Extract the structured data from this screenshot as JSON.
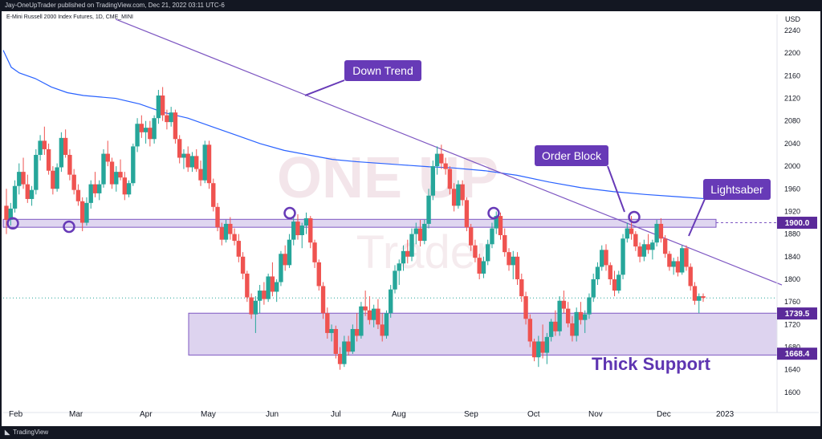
{
  "header": {
    "publish_text": "Jay-OneUpTrader published on TradingView.com, Dec 21, 2022 03:11 UTC-6"
  },
  "footer": {
    "logo_icon": "tradingview-logo-icon",
    "brand": "TradingView"
  },
  "chart_data": {
    "type": "candlestick",
    "title": "E-Mini Russell 2000 Index Futures, 1D, CME_MINI",
    "currency": "USD",
    "ylim": [
      1600,
      2260
    ],
    "yticks": [
      1600,
      1640,
      1680,
      1720,
      1760,
      1800,
      1840,
      1880,
      1920,
      1960,
      2000,
      2040,
      2080,
      2120,
      2160,
      2200,
      2240
    ],
    "x_months": [
      "Feb",
      "Mar",
      "Apr",
      "May",
      "Jun",
      "Jul",
      "Aug",
      "Sep",
      "Oct",
      "Nov",
      "Dec",
      "2023"
    ],
    "colors": {
      "up": "#26a69a",
      "down": "#ef5350",
      "ma": "#2962ff",
      "trend": "#7e57c2",
      "zone_fill": "#d1c4e9",
      "zone_stroke": "#7e57c2",
      "label_bg": "#673ab7",
      "price_tag": "#5b2a9a",
      "current_price_line": "#26a69a"
    },
    "price_tags": [
      1900.0,
      1739.5,
      1668.4
    ],
    "price_tag_labels": [
      "1900.0",
      "1739.5",
      "1668.4"
    ],
    "resistance_zone": [
      1892,
      1906
    ],
    "support_zone": [
      1666,
      1740
    ],
    "current_price_level": 1767,
    "annotations": [
      "Down Trend",
      "Order Block",
      "Lightsaber",
      "Thick Support"
    ],
    "watermark": [
      "ONE UP",
      "Trader"
    ],
    "moving_average": [
      {
        "t": 0,
        "v": 2205
      },
      {
        "t": 10,
        "v": 2175
      },
      {
        "t": 20,
        "v": 2165
      },
      {
        "t": 40,
        "v": 2155
      },
      {
        "t": 60,
        "v": 2140
      },
      {
        "t": 80,
        "v": 2130
      },
      {
        "t": 100,
        "v": 2125
      },
      {
        "t": 140,
        "v": 2120
      },
      {
        "t": 170,
        "v": 2110
      },
      {
        "t": 200,
        "v": 2095
      },
      {
        "t": 230,
        "v": 2085
      },
      {
        "t": 260,
        "v": 2070
      },
      {
        "t": 290,
        "v": 2055
      },
      {
        "t": 320,
        "v": 2040
      },
      {
        "t": 350,
        "v": 2028
      },
      {
        "t": 380,
        "v": 2020
      },
      {
        "t": 410,
        "v": 2012
      },
      {
        "t": 440,
        "v": 2008
      },
      {
        "t": 470,
        "v": 2005
      },
      {
        "t": 500,
        "v": 2002
      },
      {
        "t": 530,
        "v": 1999
      },
      {
        "t": 560,
        "v": 1997
      },
      {
        "t": 600,
        "v": 1992
      },
      {
        "t": 640,
        "v": 1984
      },
      {
        "t": 680,
        "v": 1972
      },
      {
        "t": 720,
        "v": 1962
      },
      {
        "t": 760,
        "v": 1955
      },
      {
        "t": 800,
        "v": 1950
      },
      {
        "t": 840,
        "v": 1946
      },
      {
        "t": 880,
        "v": 1942
      }
    ],
    "trendline": [
      {
        "t": 140,
        "v": 2260
      },
      {
        "t": 970,
        "v": 1790
      }
    ],
    "circle_points": [
      {
        "t": 12,
        "v": 1899
      },
      {
        "t": 82,
        "v": 1893
      },
      {
        "t": 357,
        "v": 1917
      },
      {
        "t": 611,
        "v": 1917
      },
      {
        "t": 786,
        "v": 1910
      }
    ],
    "candles": [
      {
        "o": 1930,
        "h": 1960,
        "l": 1880,
        "c": 1905
      },
      {
        "o": 1905,
        "h": 1935,
        "l": 1895,
        "c": 1925
      },
      {
        "o": 1925,
        "h": 1975,
        "l": 1918,
        "c": 1965
      },
      {
        "o": 1965,
        "h": 2005,
        "l": 1950,
        "c": 1990
      },
      {
        "o": 1990,
        "h": 2015,
        "l": 1960,
        "c": 1968
      },
      {
        "o": 1968,
        "h": 1985,
        "l": 1935,
        "c": 1942
      },
      {
        "o": 1942,
        "h": 1965,
        "l": 1930,
        "c": 1958
      },
      {
        "o": 1958,
        "h": 2030,
        "l": 1950,
        "c": 2020
      },
      {
        "o": 2020,
        "h": 2055,
        "l": 2010,
        "c": 2045
      },
      {
        "o": 2045,
        "h": 2070,
        "l": 2020,
        "c": 2030
      },
      {
        "o": 2030,
        "h": 2040,
        "l": 1985,
        "c": 1992
      },
      {
        "o": 1992,
        "h": 2000,
        "l": 1950,
        "c": 1960
      },
      {
        "o": 1960,
        "h": 2005,
        "l": 1955,
        "c": 1998
      },
      {
        "o": 1998,
        "h": 2060,
        "l": 1990,
        "c": 2050
      },
      {
        "o": 2050,
        "h": 2065,
        "l": 2015,
        "c": 2020
      },
      {
        "o": 2020,
        "h": 2030,
        "l": 1975,
        "c": 1985
      },
      {
        "o": 1985,
        "h": 1995,
        "l": 1950,
        "c": 1958
      },
      {
        "o": 1958,
        "h": 1968,
        "l": 1930,
        "c": 1938
      },
      {
        "o": 1938,
        "h": 1945,
        "l": 1885,
        "c": 1900
      },
      {
        "o": 1900,
        "h": 1945,
        "l": 1895,
        "c": 1935
      },
      {
        "o": 1935,
        "h": 1975,
        "l": 1925,
        "c": 1968
      },
      {
        "o": 1968,
        "h": 1990,
        "l": 1945,
        "c": 1952
      },
      {
        "o": 1952,
        "h": 1975,
        "l": 1940,
        "c": 1968
      },
      {
        "o": 1968,
        "h": 2030,
        "l": 1962,
        "c": 2022
      },
      {
        "o": 2022,
        "h": 2045,
        "l": 2000,
        "c": 2008
      },
      {
        "o": 2008,
        "h": 2015,
        "l": 1960,
        "c": 1968
      },
      {
        "o": 1968,
        "h": 2000,
        "l": 1955,
        "c": 1990
      },
      {
        "o": 1990,
        "h": 2012,
        "l": 1975,
        "c": 1980
      },
      {
        "o": 1980,
        "h": 1990,
        "l": 1940,
        "c": 1950
      },
      {
        "o": 1950,
        "h": 1975,
        "l": 1945,
        "c": 1970
      },
      {
        "o": 1970,
        "h": 2040,
        "l": 1965,
        "c": 2035
      },
      {
        "o": 2035,
        "h": 2085,
        "l": 2025,
        "c": 2075
      },
      {
        "o": 2075,
        "h": 2090,
        "l": 2050,
        "c": 2060
      },
      {
        "o": 2060,
        "h": 2080,
        "l": 2040,
        "c": 2068
      },
      {
        "o": 2068,
        "h": 2080,
        "l": 2035,
        "c": 2048
      },
      {
        "o": 2048,
        "h": 2090,
        "l": 2040,
        "c": 2085
      },
      {
        "o": 2085,
        "h": 2135,
        "l": 2075,
        "c": 2125
      },
      {
        "o": 2125,
        "h": 2140,
        "l": 2080,
        "c": 2090
      },
      {
        "o": 2090,
        "h": 2100,
        "l": 2065,
        "c": 2078
      },
      {
        "o": 2078,
        "h": 2105,
        "l": 2070,
        "c": 2095
      },
      {
        "o": 2095,
        "h": 2100,
        "l": 2040,
        "c": 2048
      },
      {
        "o": 2048,
        "h": 2055,
        "l": 2005,
        "c": 2015
      },
      {
        "o": 2015,
        "h": 2030,
        "l": 1995,
        "c": 2022
      },
      {
        "o": 2022,
        "h": 2035,
        "l": 1990,
        "c": 1998
      },
      {
        "o": 1998,
        "h": 2025,
        "l": 1990,
        "c": 2018
      },
      {
        "o": 2018,
        "h": 2030,
        "l": 1990,
        "c": 1995
      },
      {
        "o": 1995,
        "h": 2010,
        "l": 1965,
        "c": 1975
      },
      {
        "o": 1975,
        "h": 2045,
        "l": 1970,
        "c": 2038
      },
      {
        "o": 2038,
        "h": 2045,
        "l": 1960,
        "c": 1970
      },
      {
        "o": 1970,
        "h": 1978,
        "l": 1920,
        "c": 1928
      },
      {
        "o": 1928,
        "h": 1935,
        "l": 1885,
        "c": 1892
      },
      {
        "o": 1892,
        "h": 1900,
        "l": 1860,
        "c": 1870
      },
      {
        "o": 1870,
        "h": 1905,
        "l": 1865,
        "c": 1898
      },
      {
        "o": 1898,
        "h": 1910,
        "l": 1870,
        "c": 1880
      },
      {
        "o": 1880,
        "h": 1890,
        "l": 1860,
        "c": 1868
      },
      {
        "o": 1868,
        "h": 1880,
        "l": 1830,
        "c": 1840
      },
      {
        "o": 1840,
        "h": 1848,
        "l": 1800,
        "c": 1810
      },
      {
        "o": 1810,
        "h": 1815,
        "l": 1760,
        "c": 1768
      },
      {
        "o": 1768,
        "h": 1775,
        "l": 1730,
        "c": 1738
      },
      {
        "o": 1738,
        "h": 1770,
        "l": 1705,
        "c": 1762
      },
      {
        "o": 1762,
        "h": 1790,
        "l": 1740,
        "c": 1780
      },
      {
        "o": 1780,
        "h": 1795,
        "l": 1755,
        "c": 1765
      },
      {
        "o": 1765,
        "h": 1810,
        "l": 1760,
        "c": 1805
      },
      {
        "o": 1805,
        "h": 1830,
        "l": 1770,
        "c": 1778
      },
      {
        "o": 1778,
        "h": 1800,
        "l": 1760,
        "c": 1795
      },
      {
        "o": 1795,
        "h": 1850,
        "l": 1788,
        "c": 1845
      },
      {
        "o": 1845,
        "h": 1860,
        "l": 1815,
        "c": 1825
      },
      {
        "o": 1825,
        "h": 1880,
        "l": 1820,
        "c": 1870
      },
      {
        "o": 1870,
        "h": 1910,
        "l": 1860,
        "c": 1902
      },
      {
        "o": 1902,
        "h": 1915,
        "l": 1870,
        "c": 1878
      },
      {
        "o": 1878,
        "h": 1900,
        "l": 1855,
        "c": 1895
      },
      {
        "o": 1895,
        "h": 1918,
        "l": 1880,
        "c": 1908
      },
      {
        "o": 1908,
        "h": 1912,
        "l": 1855,
        "c": 1865
      },
      {
        "o": 1865,
        "h": 1870,
        "l": 1820,
        "c": 1830
      },
      {
        "o": 1830,
        "h": 1835,
        "l": 1780,
        "c": 1788
      },
      {
        "o": 1788,
        "h": 1795,
        "l": 1730,
        "c": 1740
      },
      {
        "o": 1740,
        "h": 1750,
        "l": 1695,
        "c": 1705
      },
      {
        "o": 1705,
        "h": 1720,
        "l": 1690,
        "c": 1712
      },
      {
        "o": 1712,
        "h": 1718,
        "l": 1660,
        "c": 1668
      },
      {
        "o": 1668,
        "h": 1680,
        "l": 1640,
        "c": 1650
      },
      {
        "o": 1650,
        "h": 1700,
        "l": 1645,
        "c": 1690
      },
      {
        "o": 1690,
        "h": 1700,
        "l": 1665,
        "c": 1672
      },
      {
        "o": 1672,
        "h": 1720,
        "l": 1668,
        "c": 1712
      },
      {
        "o": 1712,
        "h": 1740,
        "l": 1690,
        "c": 1700
      },
      {
        "o": 1700,
        "h": 1760,
        "l": 1695,
        "c": 1752
      },
      {
        "o": 1752,
        "h": 1780,
        "l": 1735,
        "c": 1745
      },
      {
        "o": 1745,
        "h": 1770,
        "l": 1720,
        "c": 1728
      },
      {
        "o": 1728,
        "h": 1755,
        "l": 1715,
        "c": 1748
      },
      {
        "o": 1748,
        "h": 1765,
        "l": 1712,
        "c": 1720
      },
      {
        "o": 1720,
        "h": 1740,
        "l": 1690,
        "c": 1700
      },
      {
        "o": 1700,
        "h": 1745,
        "l": 1695,
        "c": 1740
      },
      {
        "o": 1740,
        "h": 1790,
        "l": 1732,
        "c": 1782
      },
      {
        "o": 1782,
        "h": 1825,
        "l": 1775,
        "c": 1815
      },
      {
        "o": 1815,
        "h": 1835,
        "l": 1790,
        "c": 1828
      },
      {
        "o": 1828,
        "h": 1860,
        "l": 1815,
        "c": 1850
      },
      {
        "o": 1850,
        "h": 1870,
        "l": 1828,
        "c": 1840
      },
      {
        "o": 1840,
        "h": 1890,
        "l": 1832,
        "c": 1880
      },
      {
        "o": 1880,
        "h": 1900,
        "l": 1862,
        "c": 1890
      },
      {
        "o": 1890,
        "h": 1905,
        "l": 1858,
        "c": 1868
      },
      {
        "o": 1868,
        "h": 1905,
        "l": 1862,
        "c": 1898
      },
      {
        "o": 1898,
        "h": 1960,
        "l": 1890,
        "c": 1948
      },
      {
        "o": 1948,
        "h": 2010,
        "l": 1940,
        "c": 2000
      },
      {
        "o": 2000,
        "h": 2035,
        "l": 1985,
        "c": 2022
      },
      {
        "o": 2022,
        "h": 2038,
        "l": 1995,
        "c": 2005
      },
      {
        "o": 2005,
        "h": 2015,
        "l": 1985,
        "c": 1995
      },
      {
        "o": 1995,
        "h": 2000,
        "l": 1950,
        "c": 1960
      },
      {
        "o": 1960,
        "h": 1970,
        "l": 1920,
        "c": 1930
      },
      {
        "o": 1930,
        "h": 1975,
        "l": 1925,
        "c": 1968
      },
      {
        "o": 1968,
        "h": 1975,
        "l": 1930,
        "c": 1940
      },
      {
        "o": 1940,
        "h": 1945,
        "l": 1885,
        "c": 1892
      },
      {
        "o": 1892,
        "h": 1898,
        "l": 1850,
        "c": 1860
      },
      {
        "o": 1860,
        "h": 1870,
        "l": 1830,
        "c": 1838
      },
      {
        "o": 1838,
        "h": 1845,
        "l": 1800,
        "c": 1810
      },
      {
        "o": 1810,
        "h": 1840,
        "l": 1802,
        "c": 1832
      },
      {
        "o": 1832,
        "h": 1870,
        "l": 1825,
        "c": 1862
      },
      {
        "o": 1862,
        "h": 1900,
        "l": 1855,
        "c": 1890
      },
      {
        "o": 1890,
        "h": 1920,
        "l": 1880,
        "c": 1912
      },
      {
        "o": 1912,
        "h": 1918,
        "l": 1870,
        "c": 1878
      },
      {
        "o": 1878,
        "h": 1890,
        "l": 1840,
        "c": 1848
      },
      {
        "o": 1848,
        "h": 1855,
        "l": 1815,
        "c": 1825
      },
      {
        "o": 1825,
        "h": 1850,
        "l": 1800,
        "c": 1840
      },
      {
        "o": 1840,
        "h": 1848,
        "l": 1790,
        "c": 1800
      },
      {
        "o": 1800,
        "h": 1810,
        "l": 1760,
        "c": 1770
      },
      {
        "o": 1770,
        "h": 1778,
        "l": 1720,
        "c": 1730
      },
      {
        "o": 1730,
        "h": 1738,
        "l": 1680,
        "c": 1690
      },
      {
        "o": 1690,
        "h": 1695,
        "l": 1655,
        "c": 1662
      },
      {
        "o": 1662,
        "h": 1700,
        "l": 1645,
        "c": 1690
      },
      {
        "o": 1690,
        "h": 1720,
        "l": 1660,
        "c": 1670
      },
      {
        "o": 1670,
        "h": 1705,
        "l": 1650,
        "c": 1698
      },
      {
        "o": 1698,
        "h": 1730,
        "l": 1690,
        "c": 1725
      },
      {
        "o": 1725,
        "h": 1745,
        "l": 1700,
        "c": 1708
      },
      {
        "o": 1708,
        "h": 1770,
        "l": 1700,
        "c": 1762
      },
      {
        "o": 1762,
        "h": 1780,
        "l": 1740,
        "c": 1748
      },
      {
        "o": 1748,
        "h": 1760,
        "l": 1715,
        "c": 1722
      },
      {
        "o": 1722,
        "h": 1735,
        "l": 1690,
        "c": 1700
      },
      {
        "o": 1700,
        "h": 1750,
        "l": 1690,
        "c": 1742
      },
      {
        "o": 1742,
        "h": 1760,
        "l": 1720,
        "c": 1728
      },
      {
        "o": 1728,
        "h": 1745,
        "l": 1705,
        "c": 1738
      },
      {
        "o": 1738,
        "h": 1775,
        "l": 1730,
        "c": 1768
      },
      {
        "o": 1768,
        "h": 1810,
        "l": 1760,
        "c": 1800
      },
      {
        "o": 1800,
        "h": 1830,
        "l": 1790,
        "c": 1822
      },
      {
        "o": 1822,
        "h": 1860,
        "l": 1815,
        "c": 1852
      },
      {
        "o": 1852,
        "h": 1862,
        "l": 1815,
        "c": 1825
      },
      {
        "o": 1825,
        "h": 1830,
        "l": 1790,
        "c": 1800
      },
      {
        "o": 1800,
        "h": 1815,
        "l": 1770,
        "c": 1780
      },
      {
        "o": 1780,
        "h": 1815,
        "l": 1775,
        "c": 1808
      },
      {
        "o": 1808,
        "h": 1880,
        "l": 1800,
        "c": 1872
      },
      {
        "o": 1872,
        "h": 1900,
        "l": 1865,
        "c": 1890
      },
      {
        "o": 1890,
        "h": 1912,
        "l": 1870,
        "c": 1880
      },
      {
        "o": 1880,
        "h": 1885,
        "l": 1850,
        "c": 1858
      },
      {
        "o": 1858,
        "h": 1865,
        "l": 1830,
        "c": 1840
      },
      {
        "o": 1840,
        "h": 1870,
        "l": 1832,
        "c": 1862
      },
      {
        "o": 1862,
        "h": 1880,
        "l": 1845,
        "c": 1852
      },
      {
        "o": 1852,
        "h": 1870,
        "l": 1835,
        "c": 1865
      },
      {
        "o": 1865,
        "h": 1905,
        "l": 1858,
        "c": 1898
      },
      {
        "o": 1898,
        "h": 1908,
        "l": 1865,
        "c": 1872
      },
      {
        "o": 1872,
        "h": 1878,
        "l": 1838,
        "c": 1845
      },
      {
        "o": 1845,
        "h": 1850,
        "l": 1815,
        "c": 1822
      },
      {
        "o": 1822,
        "h": 1838,
        "l": 1808,
        "c": 1832
      },
      {
        "o": 1832,
        "h": 1840,
        "l": 1805,
        "c": 1812
      },
      {
        "o": 1812,
        "h": 1860,
        "l": 1808,
        "c": 1855
      },
      {
        "o": 1855,
        "h": 1860,
        "l": 1815,
        "c": 1822
      },
      {
        "o": 1822,
        "h": 1828,
        "l": 1780,
        "c": 1788
      },
      {
        "o": 1788,
        "h": 1795,
        "l": 1755,
        "c": 1762
      },
      {
        "o": 1762,
        "h": 1775,
        "l": 1740,
        "c": 1770
      },
      {
        "o": 1770,
        "h": 1775,
        "l": 1760,
        "c": 1767
      }
    ]
  }
}
